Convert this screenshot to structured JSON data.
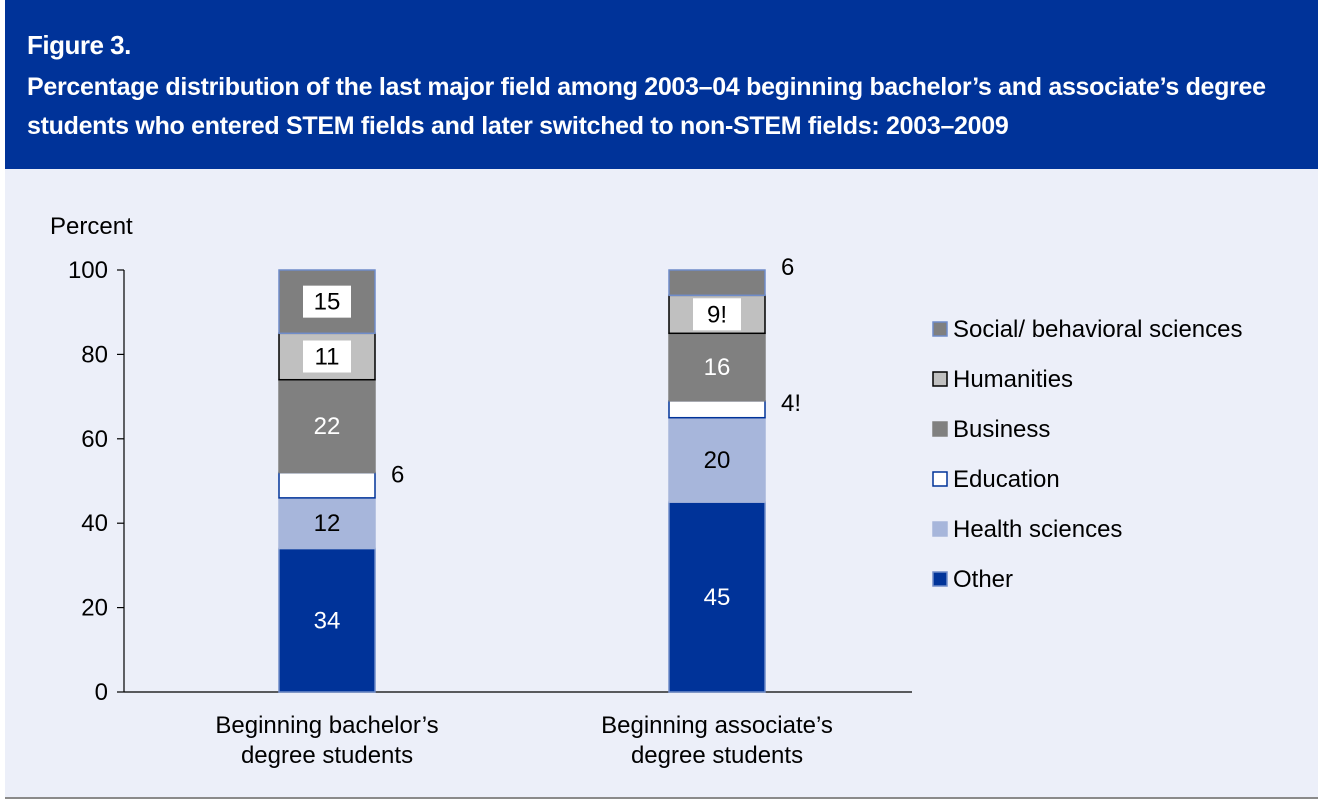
{
  "figure": {
    "label": "Figure 3.",
    "title": "Percentage distribution of the last major field among 2003–04 beginning bachelor’s and associate’s degree students who entered STEM fields and later switched to non-STEM fields: 2003–2009"
  },
  "colors": {
    "header_bg": "#003399",
    "panel_bg": "#eceff9"
  },
  "chart_data": {
    "type": "bar",
    "stacked": true,
    "ylabel": "Percent",
    "ylim": [
      0,
      100
    ],
    "yticks": [
      "0",
      "20",
      "40",
      "60",
      "80",
      "100"
    ],
    "legend_position": "right",
    "categories": [
      [
        "Beginning bachelor’s",
        "degree students"
      ],
      [
        "Beginning associate’s",
        "degree students"
      ]
    ],
    "series": [
      {
        "name": "Other",
        "values": [
          34,
          45
        ],
        "labels": [
          "34",
          "45"
        ],
        "color": "#003399",
        "label_color": "#ffffff",
        "border": "#6f8cc9"
      },
      {
        "name": "Health sciences",
        "values": [
          12,
          20
        ],
        "labels": [
          "12",
          "20"
        ],
        "color": "#a7b6db",
        "label_color": "#000000",
        "border": "#a7b6db"
      },
      {
        "name": "Education",
        "values": [
          6,
          4
        ],
        "labels": [
          "6",
          "4!"
        ],
        "color": "#ffffff",
        "label_color": "#000000",
        "border": "#003399"
      },
      {
        "name": "Business",
        "values": [
          22,
          16
        ],
        "labels": [
          "22",
          "16"
        ],
        "color": "#808080",
        "label_color": "#ffffff",
        "border": "#808080"
      },
      {
        "name": "Humanities",
        "values": [
          11,
          9
        ],
        "labels": [
          "11",
          "9!"
        ],
        "color": "#c0c0c0",
        "label_color": "#000000",
        "border": "#000000"
      },
      {
        "name": "Social/ behavioral sciences",
        "values": [
          15,
          6
        ],
        "labels": [
          "15",
          "6"
        ],
        "color": "#7f7f7f",
        "label_color": "#000000",
        "border": "#6f8cc9"
      }
    ]
  }
}
